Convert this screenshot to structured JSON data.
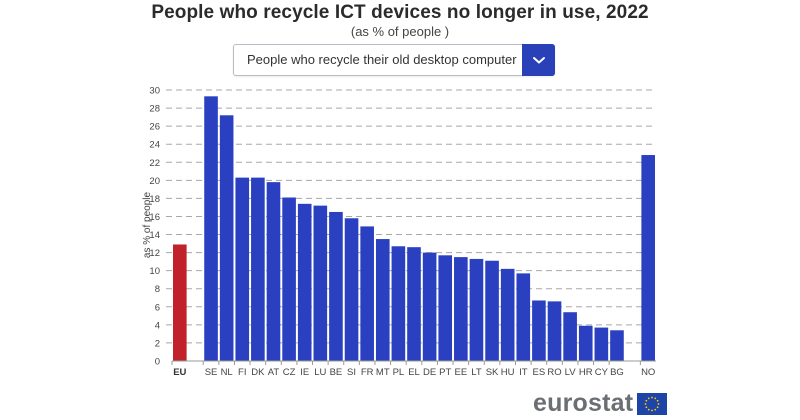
{
  "header": {
    "title": "People who recycle ICT devices no longer in use, 2022",
    "subtitle": "(as % of people )"
  },
  "dropdown": {
    "selected": "People who recycle their old desktop computer",
    "button_icon": "chevron-down-icon"
  },
  "logo": {
    "text": "eurostat",
    "flag_icon": "eu-flag-icon"
  },
  "colors": {
    "bar": "#2a40c0",
    "eu_bar": "#c0212b",
    "dropdown_button": "#2a40b8",
    "gridline": "#a8a8a8"
  },
  "chart_data": {
    "type": "bar",
    "title": "People who recycle ICT devices no longer in use, 2022",
    "subtitle": "(as % of people )",
    "xlabel": "",
    "ylabel": "as % of people",
    "ylim": [
      0,
      30
    ],
    "yticks": [
      0,
      2,
      4,
      6,
      8,
      10,
      12,
      14,
      16,
      18,
      20,
      22,
      24,
      26,
      28,
      30
    ],
    "grid": true,
    "legend": "none",
    "categories": [
      "EU",
      "",
      "SE",
      "NL",
      "FI",
      "DK",
      "AT",
      "CZ",
      "IE",
      "LU",
      "BE",
      "SI",
      "FR",
      "MT",
      "PL",
      "EL",
      "DE",
      "PT",
      "EE",
      "LT",
      "SK",
      "HU",
      "IT",
      "ES",
      "RO",
      "LV",
      "HR",
      "CY",
      "BG",
      "",
      "NO"
    ],
    "values": [
      12.9,
      null,
      29.3,
      27.2,
      20.3,
      20.3,
      19.8,
      18.1,
      17.4,
      17.2,
      16.5,
      15.8,
      14.9,
      13.5,
      12.7,
      12.6,
      12.0,
      11.7,
      11.5,
      11.3,
      11.1,
      10.2,
      9.7,
      6.7,
      6.6,
      5.4,
      3.9,
      3.7,
      3.4,
      null,
      22.8
    ],
    "highlight": {
      "EU": "eu_bar"
    }
  }
}
